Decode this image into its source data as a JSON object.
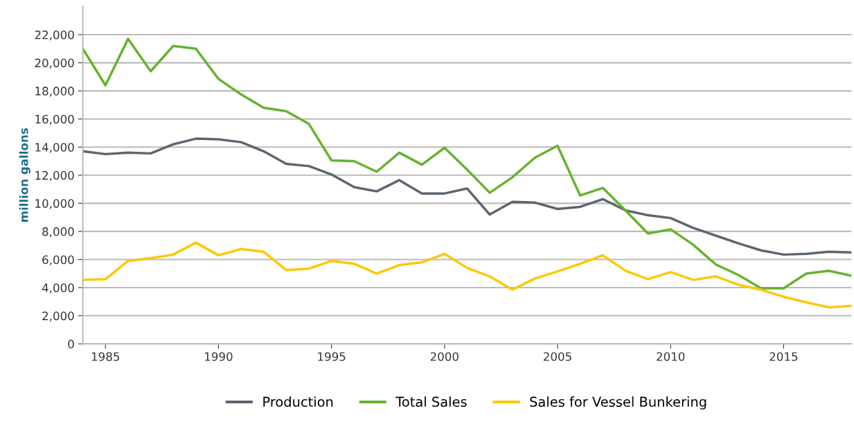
{
  "chart_data": {
    "type": "line",
    "ylabel": "million gallons",
    "x": [
      1984,
      1985,
      1986,
      1987,
      1988,
      1989,
      1990,
      1991,
      1992,
      1993,
      1994,
      1995,
      1996,
      1997,
      1998,
      1999,
      2000,
      2001,
      2002,
      2003,
      2004,
      2005,
      2006,
      2007,
      2008,
      2009,
      2010,
      2011,
      2012,
      2013,
      2014,
      2015,
      2016,
      2017,
      2018
    ],
    "series": [
      {
        "name": "Production",
        "color": "#5c6670",
        "values": [
          13700,
          13500,
          13600,
          13550,
          14200,
          14600,
          14550,
          14350,
          13700,
          12800,
          12650,
          12050,
          11150,
          10850,
          11650,
          10700,
          10700,
          11050,
          9200,
          10100,
          10050,
          9600,
          9750,
          10300,
          9500,
          9150,
          8950,
          8250,
          7700,
          7150,
          6650,
          6350,
          6400,
          6550,
          6500
        ]
      },
      {
        "name": "Total Sales",
        "color": "#65b32e",
        "values": [
          21000,
          18400,
          21700,
          19400,
          21200,
          21000,
          18850,
          17750,
          16800,
          16550,
          15650,
          13050,
          13000,
          12250,
          13600,
          12750,
          13950,
          12400,
          10750,
          11850,
          13250,
          14100,
          10550,
          11100,
          9500,
          7850,
          8150,
          7050,
          5650,
          4900,
          3950,
          3950,
          5000,
          5200,
          4850
        ]
      },
      {
        "name": "Sales for Vessel Bunkering",
        "color": "#fdc800",
        "values": [
          4550,
          4600,
          5900,
          6100,
          6350,
          7200,
          6300,
          6750,
          6550,
          5250,
          5350,
          5900,
          5700,
          5000,
          5600,
          5800,
          6400,
          5400,
          4800,
          3850,
          4650,
          5150,
          5700,
          6300,
          5200,
          4600,
          5100,
          4550,
          4800,
          4200,
          3850,
          3350,
          2950,
          2600,
          2700
        ]
      }
    ],
    "xlim": [
      1984,
      2018
    ],
    "xticks": [
      1985,
      1990,
      1995,
      2000,
      2005,
      2010,
      2015
    ],
    "ylim": [
      0,
      24000
    ],
    "yticks": [
      {
        "value": 0,
        "label": "0"
      },
      {
        "value": 2000,
        "label": "2,000"
      },
      {
        "value": 4000,
        "label": "4,000"
      },
      {
        "value": 6000,
        "label": "6,000"
      },
      {
        "value": 8000,
        "label": "8,000"
      },
      {
        "value": 10000,
        "label": "10,000"
      },
      {
        "value": 12000,
        "label": "12,000"
      },
      {
        "value": 14000,
        "label": "14,000"
      },
      {
        "value": 16000,
        "label": "16,000"
      },
      {
        "value": 18000,
        "label": "18,000"
      },
      {
        "value": 20000,
        "label": "20,000"
      },
      {
        "value": 22000,
        "label": "22,000"
      }
    ],
    "grid": "y",
    "legend": "bottom"
  }
}
